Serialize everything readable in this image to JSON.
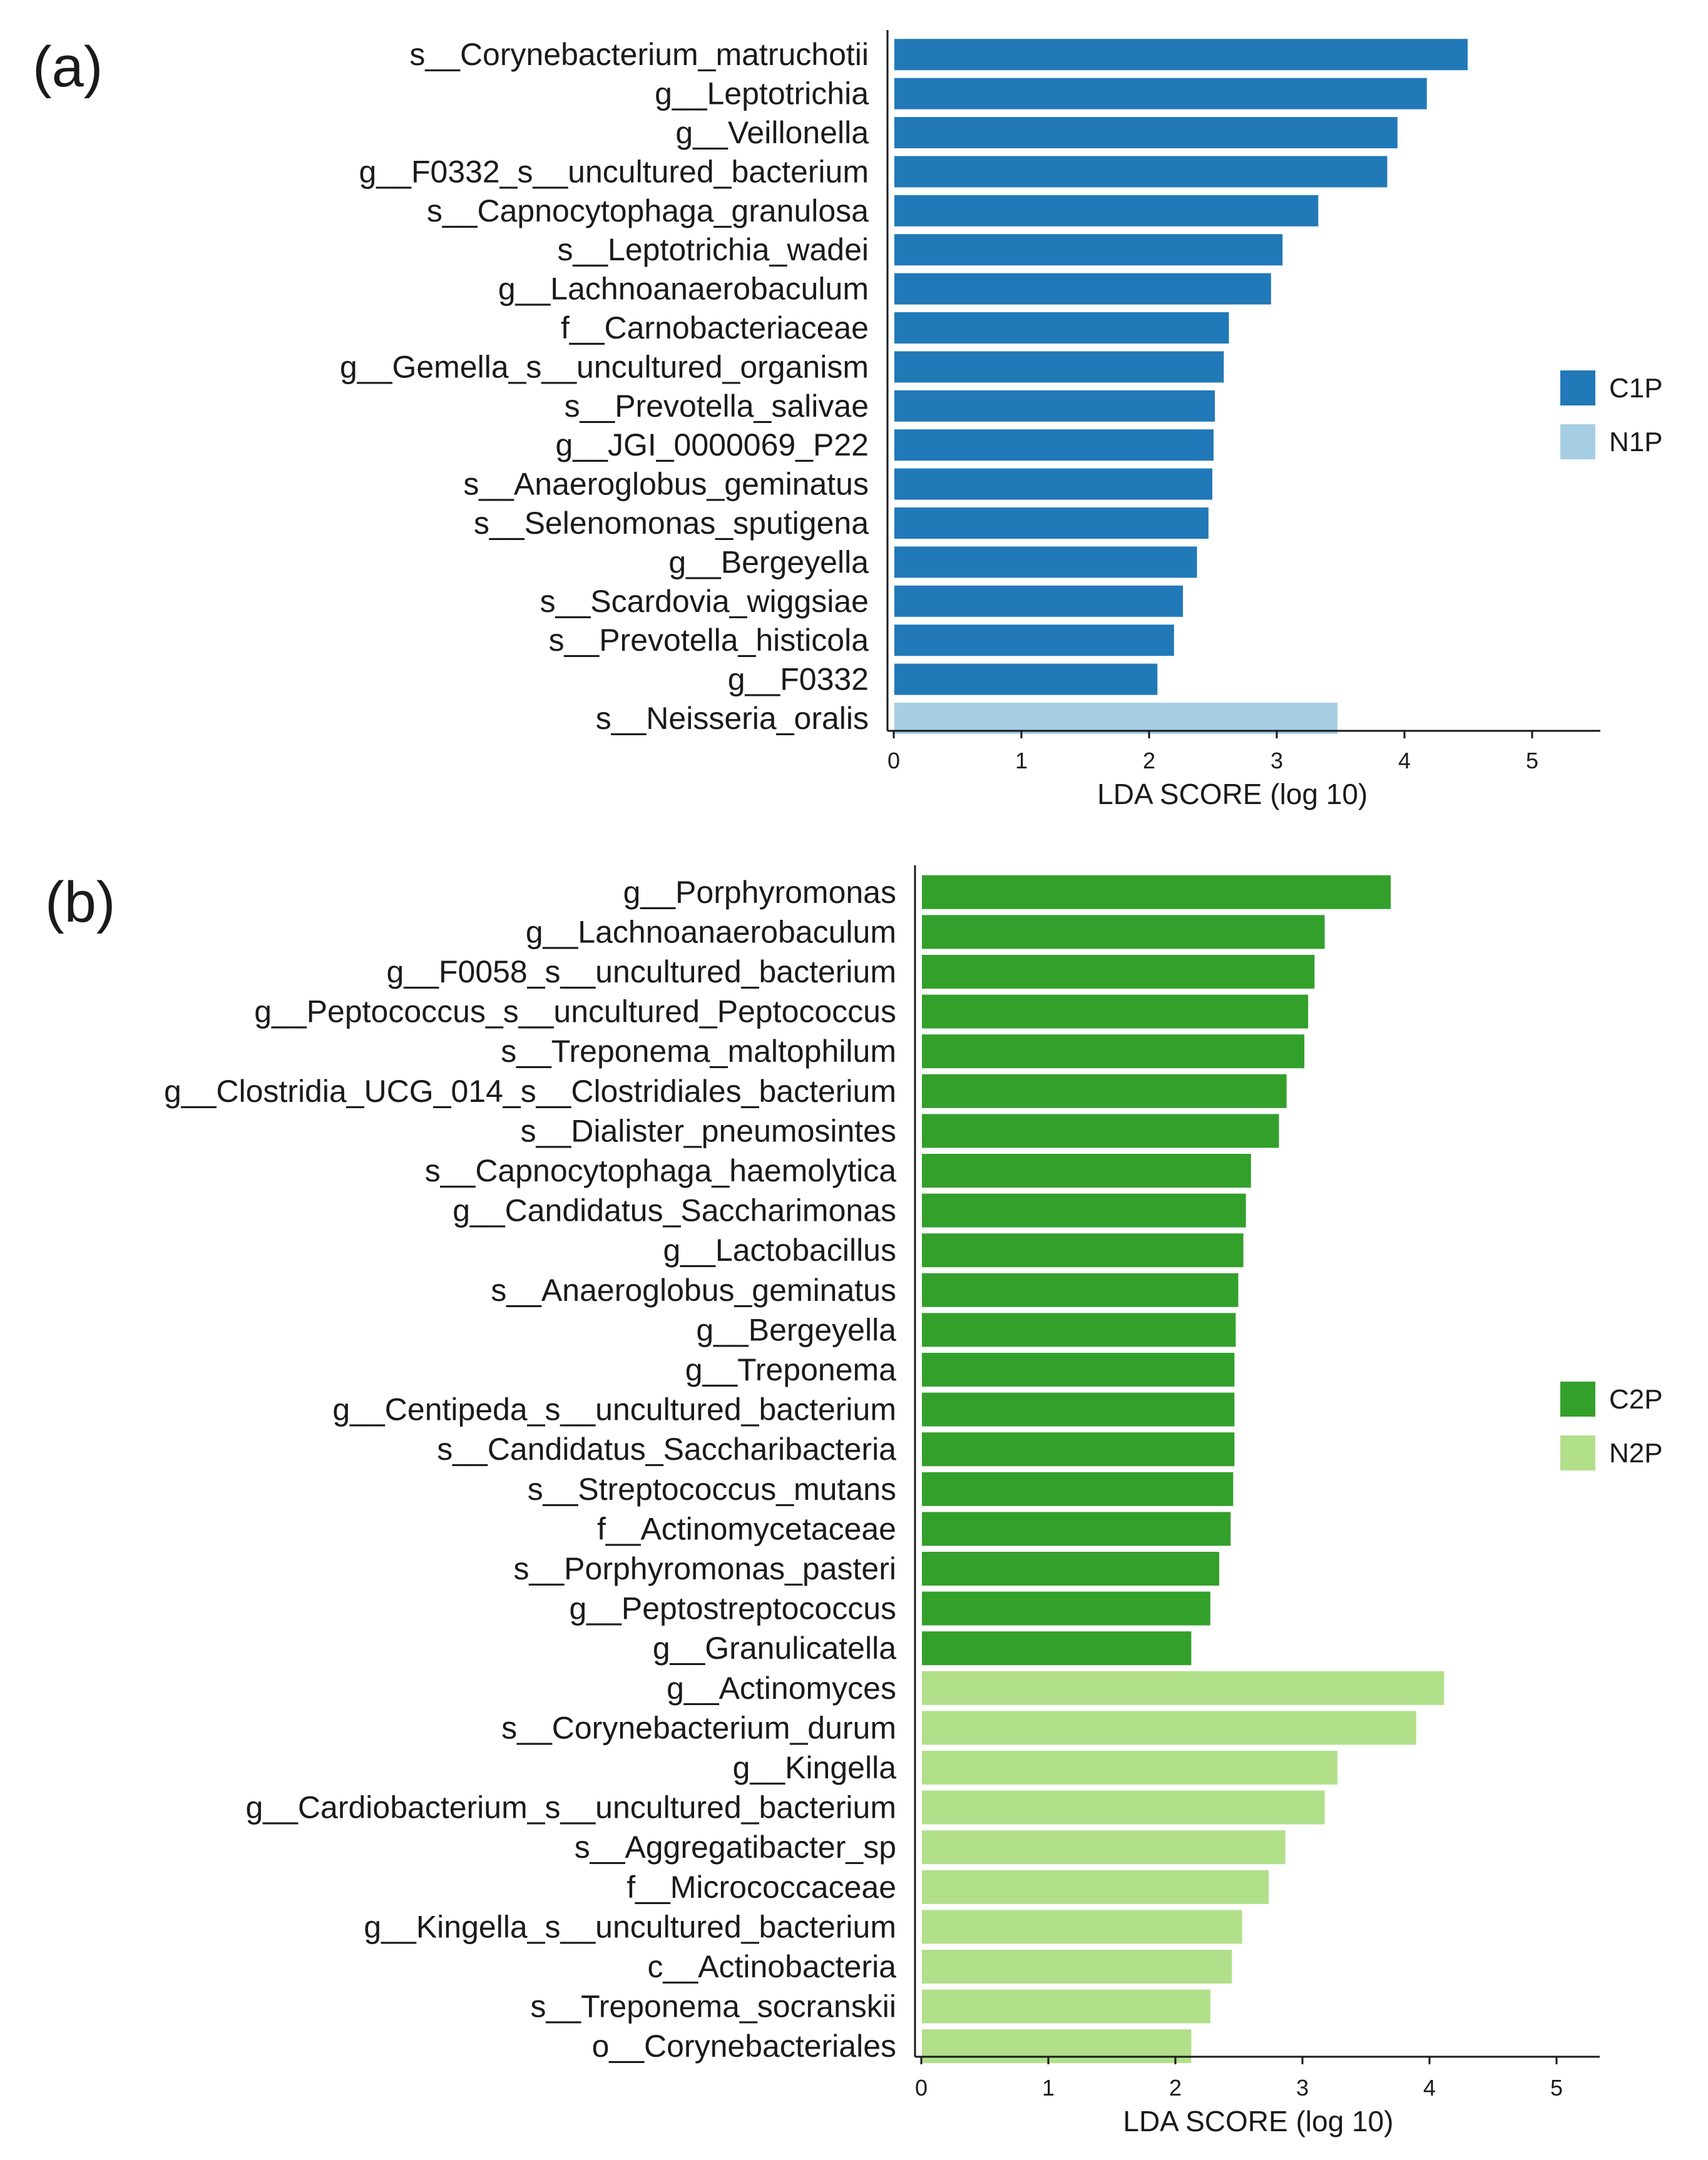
{
  "chart_data": [
    {
      "type": "bar",
      "orientation": "horizontal",
      "panel_label": "(a)",
      "xlabel": "LDA SCORE (log 10)",
      "xlim": [
        0,
        5
      ],
      "xticks": [
        "0",
        "1",
        "2",
        "3",
        "4",
        "5"
      ],
      "legend": {
        "placement": "right",
        "entries": [
          {
            "label": "C1P",
            "color": "#2179b8"
          },
          {
            "label": "N1P",
            "color": "#a6cee3"
          }
        ]
      },
      "categories": [
        "s__Corynebacterium_matruchotii",
        "g__Leptotrichia",
        "g__Veillonella",
        "g__F0332_s__uncultured_bacterium",
        "s__Capnocytophaga_granulosa",
        "s__Leptotrichia_wadei",
        "g__Lachnoanaerobaculum",
        "f__Carnobacteriaceae",
        "g__Gemella_s__uncultured_organism",
        "s__Prevotella_salivae",
        "g__JGI_0000069_P22",
        "s__Anaeroglobus_geminatus",
        "s__Selenomonas_sputigena",
        "g__Bergeyella",
        "s__Scardovia_wiggsiae",
        "s__Prevotella_histicola",
        "g__F0332",
        "s__Neisseria_oralis"
      ],
      "values": [
        4.5,
        4.18,
        3.95,
        3.87,
        3.33,
        3.05,
        2.96,
        2.63,
        2.59,
        2.52,
        2.51,
        2.5,
        2.47,
        2.38,
        2.27,
        2.2,
        2.07,
        3.48
      ],
      "groups": [
        "C1P",
        "C1P",
        "C1P",
        "C1P",
        "C1P",
        "C1P",
        "C1P",
        "C1P",
        "C1P",
        "C1P",
        "C1P",
        "C1P",
        "C1P",
        "C1P",
        "C1P",
        "C1P",
        "C1P",
        "N1P"
      ]
    },
    {
      "type": "bar",
      "orientation": "horizontal",
      "panel_label": "(b)",
      "xlabel": "LDA SCORE (log 10)",
      "xlim": [
        0,
        5
      ],
      "xticks": [
        "0",
        "1",
        "2",
        "3",
        "4",
        "5"
      ],
      "legend": {
        "placement": "right",
        "entries": [
          {
            "label": "C2P",
            "color": "#33a02c"
          },
          {
            "label": "N2P",
            "color": "#b2df8a"
          }
        ]
      },
      "categories": [
        "g__Porphyromonas",
        "g__Lachnoanaerobaculum",
        "g__F0058_s__uncultured_bacterium",
        "g__Peptococcus_s__uncultured_Peptococcus",
        "s__Treponema_maltophilum",
        "g__Clostridia_UCG_014_s__Clostridiales_bacterium",
        "s__Dialister_pneumosintes",
        "s__Capnocytophaga_haemolytica",
        "g__Candidatus_Saccharimonas",
        "g__Lactobacillus",
        "s__Anaeroglobus_geminatus",
        "g__Bergeyella",
        "g__Treponema",
        "g__Centipeda_s__uncultured_bacterium",
        "s__Candidatus_Saccharibacteria",
        "s__Streptococcus_mutans",
        "f__Actinomycetaceae",
        "s__Porphyromonas_pasteri",
        "g__Peptostreptococcus",
        "g__Granulicatella",
        "g__Actinomyces",
        "s__Corynebacterium_durum",
        "g__Kingella",
        "g__Cardiobacterium_s__uncultured_bacterium",
        "s__Aggregatibacter_sp",
        "f__Micrococcaceae",
        "g__Kingella_s__uncultured_bacterium",
        "c__Actinobacteria",
        "s__Treponema_socranskii",
        "o__Corynebacteriales"
      ],
      "values": [
        3.7,
        3.18,
        3.1,
        3.05,
        3.02,
        2.88,
        2.82,
        2.6,
        2.56,
        2.54,
        2.5,
        2.48,
        2.47,
        2.47,
        2.47,
        2.46,
        2.44,
        2.35,
        2.28,
        2.13,
        4.12,
        3.9,
        3.28,
        3.18,
        2.87,
        2.74,
        2.53,
        2.45,
        2.28,
        2.13
      ],
      "groups": [
        "C2P",
        "C2P",
        "C2P",
        "C2P",
        "C2P",
        "C2P",
        "C2P",
        "C2P",
        "C2P",
        "C2P",
        "C2P",
        "C2P",
        "C2P",
        "C2P",
        "C2P",
        "C2P",
        "C2P",
        "C2P",
        "C2P",
        "C2P",
        "N2P",
        "N2P",
        "N2P",
        "N2P",
        "N2P",
        "N2P",
        "N2P",
        "N2P",
        "N2P",
        "N2P"
      ]
    }
  ]
}
